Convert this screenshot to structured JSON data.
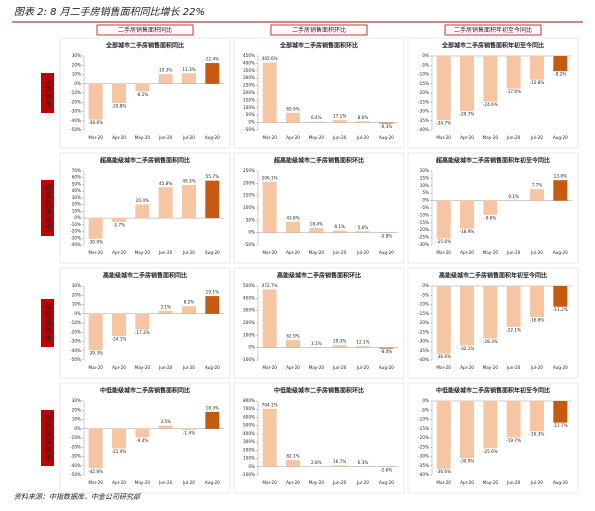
{
  "title": "图表 2: 8 月二手房销售面积同比增长 22%",
  "column_headers": [
    "二手房销售面积同比",
    "二手房销售面积环比",
    "二手房销售面积年初至今同比"
  ],
  "row_labels": [
    "全部城市",
    "超高能级城市",
    "高能级城市",
    "中低能级城市"
  ],
  "source": "资料来源：中指数据库，中金公司研究部",
  "chart_data": [
    {
      "type": "bar",
      "title": "全部城市二手房销售面积同比",
      "categories": [
        "Mar-20",
        "Apr-20",
        "May-20",
        "Jun-20",
        "Jul-20",
        "Aug-20"
      ],
      "values": [
        -38.8,
        -20.8,
        -8.2,
        10.3,
        11.3,
        22.4
      ],
      "value_labels": [
        "-38.8%",
        "-20.8%",
        "-8.2%",
        "10.3%",
        "11.3%",
        "22.4%"
      ],
      "colors": [
        "#f6c6a3",
        "#f6c6a3",
        "#f6c6a3",
        "#f6c6a3",
        "#f6c6a3",
        "#c55a11"
      ],
      "ylim": [
        -50,
        30
      ],
      "yticks": [
        {
          "value": -50,
          "label": "-50%"
        },
        {
          "value": -40,
          "label": "-40%"
        },
        {
          "value": -30,
          "label": "-30%"
        },
        {
          "value": -20,
          "label": "-20%"
        },
        {
          "value": -10,
          "label": "-10%"
        },
        {
          "value": 0,
          "label": "0%"
        },
        {
          "value": 10,
          "label": "10%"
        },
        {
          "value": 20,
          "label": "20%"
        },
        {
          "value": 30,
          "label": "30%"
        }
      ]
    },
    {
      "type": "bar",
      "title": "全部城市二手房销售面积环比",
      "categories": [
        "Mar-20",
        "Apr-20",
        "May-20",
        "Jun-20",
        "Jul-20",
        "Aug-20"
      ],
      "values": [
        405.6,
        65.9,
        6.4,
        17.1,
        8.6,
        -6.3
      ],
      "value_labels": [
        "405.6%",
        "65.9%",
        "6.4%",
        "17.1%",
        "8.6%",
        "-6.3%"
      ],
      "colors": [
        "#f6c6a3",
        "#f6c6a3",
        "#f6c6a3",
        "#f6c6a3",
        "#f6c6a3",
        "#c55a11"
      ],
      "ylim": [
        -50,
        450
      ],
      "yticks": [
        {
          "value": -50,
          "label": "-50%"
        },
        {
          "value": 0,
          "label": "0%"
        },
        {
          "value": 50,
          "label": "50%"
        },
        {
          "value": 100,
          "label": "100%"
        },
        {
          "value": 150,
          "label": "150%"
        },
        {
          "value": 200,
          "label": "200%"
        },
        {
          "value": 250,
          "label": "250%"
        },
        {
          "value": 300,
          "label": "300%"
        },
        {
          "value": 350,
          "label": "350%"
        },
        {
          "value": 400,
          "label": "400%"
        },
        {
          "value": 450,
          "label": "450%"
        }
      ]
    },
    {
      "type": "bar",
      "title": "全部城市二手房销售面积年初至今同比",
      "categories": [
        "Mar-20",
        "Apr-20",
        "May-20",
        "Jun-20",
        "Jul-20",
        "Aug-20"
      ],
      "values": [
        -34.7,
        -29.7,
        -24.6,
        -17.6,
        -12.8,
        -8.2
      ],
      "value_labels": [
        "-34.7%",
        "-29.7%",
        "-24.6%",
        "-17.6%",
        "-12.8%",
        "-8.2%"
      ],
      "colors": [
        "#f6c6a3",
        "#f6c6a3",
        "#f6c6a3",
        "#f6c6a3",
        "#f6c6a3",
        "#c55a11"
      ],
      "ylim": [
        -40,
        0
      ],
      "yticks": [
        {
          "value": -40,
          "label": "-40%"
        },
        {
          "value": -35,
          "label": "-35%"
        },
        {
          "value": -30,
          "label": "-30%"
        },
        {
          "value": -25,
          "label": "-25%"
        },
        {
          "value": -20,
          "label": "-20%"
        },
        {
          "value": -15,
          "label": "-15%"
        },
        {
          "value": -10,
          "label": "-10%"
        },
        {
          "value": -5,
          "label": "-5%"
        },
        {
          "value": 0,
          "label": "0%"
        }
      ]
    },
    {
      "type": "bar",
      "title": "超高能级城市二手房销售面积同比",
      "categories": [
        "Mar-20",
        "Apr-20",
        "May-20",
        "Jun-20",
        "Jul-20",
        "Aug-20"
      ],
      "values": [
        -30.9,
        -5.7,
        20.4,
        45.8,
        49.3,
        55.7
      ],
      "value_labels": [
        "-30.9%",
        "-5.7%",
        "20.4%",
        "45.8%",
        "49.3%",
        "55.7%"
      ],
      "colors": [
        "#f6c6a3",
        "#f6c6a3",
        "#f6c6a3",
        "#f6c6a3",
        "#f6c6a3",
        "#c55a11"
      ],
      "ylim": [
        -40,
        70
      ],
      "yticks": [
        {
          "value": -40,
          "label": "-40%"
        },
        {
          "value": -30,
          "label": "-30%"
        },
        {
          "value": -20,
          "label": "-20%"
        },
        {
          "value": -10,
          "label": "-10%"
        },
        {
          "value": 0,
          "label": "0%"
        },
        {
          "value": 10,
          "label": "10%"
        },
        {
          "value": 20,
          "label": "20%"
        },
        {
          "value": 30,
          "label": "30%"
        },
        {
          "value": 40,
          "label": "40%"
        },
        {
          "value": 50,
          "label": "50%"
        },
        {
          "value": 60,
          "label": "60%"
        },
        {
          "value": 70,
          "label": "70%"
        }
      ]
    },
    {
      "type": "bar",
      "title": "超高能级城市二手房销售面积环比",
      "categories": [
        "Mar-20",
        "Apr-20",
        "May-20",
        "Jun-20",
        "Jul-20",
        "Aug-20"
      ],
      "values": [
        206.1,
        43.8,
        18.4,
        8.1,
        5.6,
        -0.8
      ],
      "value_labels": [
        "206.1%",
        "43.8%",
        "18.4%",
        "8.1%",
        "5.6%",
        "-0.8%"
      ],
      "colors": [
        "#f6c6a3",
        "#f6c6a3",
        "#f6c6a3",
        "#f6c6a3",
        "#f6c6a3",
        "#c55a11"
      ],
      "ylim": [
        -50,
        250
      ],
      "yticks": [
        {
          "value": -50,
          "label": "-50%"
        },
        {
          "value": 0,
          "label": "0%"
        },
        {
          "value": 50,
          "label": "50%"
        },
        {
          "value": 100,
          "label": "100%"
        },
        {
          "value": 150,
          "label": "150%"
        },
        {
          "value": 200,
          "label": "200%"
        },
        {
          "value": 250,
          "label": "250%"
        }
      ]
    },
    {
      "type": "bar",
      "title": "超高能级城市二手房销售面积年初至今同比",
      "categories": [
        "Mar-20",
        "Apr-20",
        "May-20",
        "Jun-20",
        "Jul-20",
        "Aug-20"
      ],
      "values": [
        -25.6,
        -18.9,
        -9.6,
        0.1,
        7.7,
        13.8
      ],
      "value_labels": [
        "-25.6%",
        "-18.9%",
        "-9.6%",
        "0.1%",
        "7.7%",
        "13.8%"
      ],
      "colors": [
        "#f6c6a3",
        "#f6c6a3",
        "#f6c6a3",
        "#f6c6a3",
        "#f6c6a3",
        "#c55a11"
      ],
      "ylim": [
        -30,
        20
      ],
      "yticks": [
        {
          "value": -30,
          "label": "-30%"
        },
        {
          "value": -25,
          "label": "-25%"
        },
        {
          "value": -20,
          "label": "-20%"
        },
        {
          "value": -15,
          "label": "-15%"
        },
        {
          "value": -10,
          "label": "-10%"
        },
        {
          "value": -5,
          "label": "-5%"
        },
        {
          "value": 0,
          "label": "0%"
        },
        {
          "value": 5,
          "label": "5%"
        },
        {
          "value": 10,
          "label": "10%"
        },
        {
          "value": 15,
          "label": "15%"
        },
        {
          "value": 20,
          "label": "20%"
        }
      ]
    },
    {
      "type": "bar",
      "title": "高能级城市二手房销售面积同比",
      "categories": [
        "Mar-20",
        "Apr-20",
        "May-20",
        "Jun-20",
        "Jul-20",
        "Aug-20"
      ],
      "values": [
        -39.3,
        -24.1,
        -17.2,
        3.1,
        8.2,
        19.1
      ],
      "value_labels": [
        "-39.3%",
        "-24.1%",
        "-17.2%",
        "3.1%",
        "8.2%",
        "19.1%"
      ],
      "colors": [
        "#f6c6a3",
        "#f6c6a3",
        "#f6c6a3",
        "#f6c6a3",
        "#f6c6a3",
        "#c55a11"
      ],
      "ylim": [
        -50,
        30
      ],
      "yticks": [
        {
          "value": -50,
          "label": "-50%"
        },
        {
          "value": -40,
          "label": "-40%"
        },
        {
          "value": -30,
          "label": "-30%"
        },
        {
          "value": -20,
          "label": "-20%"
        },
        {
          "value": -10,
          "label": "-10%"
        },
        {
          "value": 0,
          "label": "0%"
        },
        {
          "value": 10,
          "label": "10%"
        },
        {
          "value": 20,
          "label": "20%"
        },
        {
          "value": 30,
          "label": "30%"
        }
      ]
    },
    {
      "type": "bar",
      "title": "高能级城市二手房销售面积环比",
      "categories": [
        "Mar-20",
        "Apr-20",
        "May-20",
        "Jun-20",
        "Jul-20",
        "Aug-20"
      ],
      "values": [
        472.7,
        62.9,
        3.1,
        20.3,
        12.1,
        -8.0
      ],
      "value_labels": [
        "472.7%",
        "62.9%",
        "3.1%",
        "20.3%",
        "12.1%",
        "-8.0%"
      ],
      "colors": [
        "#f6c6a3",
        "#f6c6a3",
        "#f6c6a3",
        "#f6c6a3",
        "#f6c6a3",
        "#c55a11"
      ],
      "ylim": [
        -100,
        500
      ],
      "yticks": [
        {
          "value": -100,
          "label": "-100%"
        },
        {
          "value": 0,
          "label": "0%"
        },
        {
          "value": 100,
          "label": "100%"
        },
        {
          "value": 200,
          "label": "200%"
        },
        {
          "value": 300,
          "label": "300%"
        },
        {
          "value": 400,
          "label": "400%"
        },
        {
          "value": 500,
          "label": "500%"
        }
      ]
    },
    {
      "type": "bar",
      "title": "高能级城市二手房销售面积年初至今同比",
      "categories": [
        "Mar-20",
        "Apr-20",
        "May-20",
        "Jun-20",
        "Jul-20",
        "Aug-20"
      ],
      "values": [
        -36.6,
        -32.1,
        -28.3,
        -22.1,
        -16.8,
        -11.2
      ],
      "value_labels": [
        "-36.6%",
        "-32.1%",
        "-28.3%",
        "-22.1%",
        "-16.8%",
        "-11.2%"
      ],
      "colors": [
        "#f6c6a3",
        "#f6c6a3",
        "#f6c6a3",
        "#f6c6a3",
        "#f6c6a3",
        "#c55a11"
      ],
      "ylim": [
        -40,
        0
      ],
      "yticks": [
        {
          "value": -40,
          "label": "-40%"
        },
        {
          "value": -35,
          "label": "-35%"
        },
        {
          "value": -30,
          "label": "-30%"
        },
        {
          "value": -25,
          "label": "-25%"
        },
        {
          "value": -20,
          "label": "-20%"
        },
        {
          "value": -15,
          "label": "-15%"
        },
        {
          "value": -10,
          "label": "-10%"
        },
        {
          "value": -5,
          "label": "-5%"
        },
        {
          "value": 0,
          "label": "0%"
        }
      ]
    },
    {
      "type": "bar",
      "title": "中低能级城市二手房销售面积同比",
      "categories": [
        "Mar-20",
        "Apr-20",
        "May-20",
        "Jun-20",
        "Jul-20",
        "Aug-20"
      ],
      "values": [
        -42.8,
        -21.4,
        -9.4,
        3.5,
        -1.4,
        18.3
      ],
      "value_labels": [
        "-42.8%",
        "-21.4%",
        "-9.4%",
        "3.5%",
        "-1.4%",
        "18.3%"
      ],
      "colors": [
        "#f6c6a3",
        "#f6c6a3",
        "#f6c6a3",
        "#f6c6a3",
        "#f6c6a3",
        "#c55a11"
      ],
      "ylim": [
        -50,
        30
      ],
      "yticks": [
        {
          "value": -50,
          "label": "-50%"
        },
        {
          "value": -40,
          "label": "-40%"
        },
        {
          "value": -30,
          "label": "-30%"
        },
        {
          "value": -20,
          "label": "-20%"
        },
        {
          "value": -10,
          "label": "-10%"
        },
        {
          "value": 0,
          "label": "0%"
        },
        {
          "value": 10,
          "label": "10%"
        },
        {
          "value": 20,
          "label": "20%"
        },
        {
          "value": 30,
          "label": "30%"
        }
      ]
    },
    {
      "type": "bar",
      "title": "中低能级城市二手房销售面积环比",
      "categories": [
        "Mar-20",
        "Apr-20",
        "May-20",
        "Jun-20",
        "Jul-20",
        "Aug-20"
      ],
      "values": [
        704.1,
        82.1,
        2.8,
        16.7,
        6.3,
        -2.6
      ],
      "value_labels": [
        "704.1%",
        "82.1%",
        "2.8%",
        "16.7%",
        "6.3%",
        "-2.6%"
      ],
      "colors": [
        "#f6c6a3",
        "#f6c6a3",
        "#f6c6a3",
        "#f6c6a3",
        "#f6c6a3",
        "#c55a11"
      ],
      "ylim": [
        -100,
        800
      ],
      "yticks": [
        {
          "value": -100,
          "label": "-100%"
        },
        {
          "value": 0,
          "label": "0%"
        },
        {
          "value": 100,
          "label": "100%"
        },
        {
          "value": 200,
          "label": "200%"
        },
        {
          "value": 300,
          "label": "300%"
        },
        {
          "value": 400,
          "label": "400%"
        },
        {
          "value": 500,
          "label": "500%"
        },
        {
          "value": 600,
          "label": "600%"
        },
        {
          "value": 700,
          "label": "700%"
        },
        {
          "value": 800,
          "label": "800%"
        }
      ]
    },
    {
      "type": "bar",
      "title": "中低能级城市二手房销售面积年初至今同比",
      "categories": [
        "Mar-20",
        "Apr-20",
        "May-20",
        "Jun-20",
        "Jul-20",
        "Aug-20"
      ],
      "values": [
        -36.6,
        -30.9,
        -25.6,
        -19.7,
        -16.3,
        -11.7
      ],
      "value_labels": [
        "-36.6%",
        "-30.9%",
        "-25.6%",
        "-19.7%",
        "-16.3%",
        "-11.7%"
      ],
      "colors": [
        "#f6c6a3",
        "#f6c6a3",
        "#f6c6a3",
        "#f6c6a3",
        "#f6c6a3",
        "#c55a11"
      ],
      "ylim": [
        -40,
        0
      ],
      "yticks": [
        {
          "value": -40,
          "label": "-40%"
        },
        {
          "value": -35,
          "label": "-35%"
        },
        {
          "value": -30,
          "label": "-30%"
        },
        {
          "value": -25,
          "label": "-25%"
        },
        {
          "value": -20,
          "label": "-20%"
        },
        {
          "value": -15,
          "label": "-15%"
        },
        {
          "value": -10,
          "label": "-10%"
        },
        {
          "value": -5,
          "label": "-5%"
        },
        {
          "value": 0,
          "label": "0%"
        }
      ]
    }
  ]
}
